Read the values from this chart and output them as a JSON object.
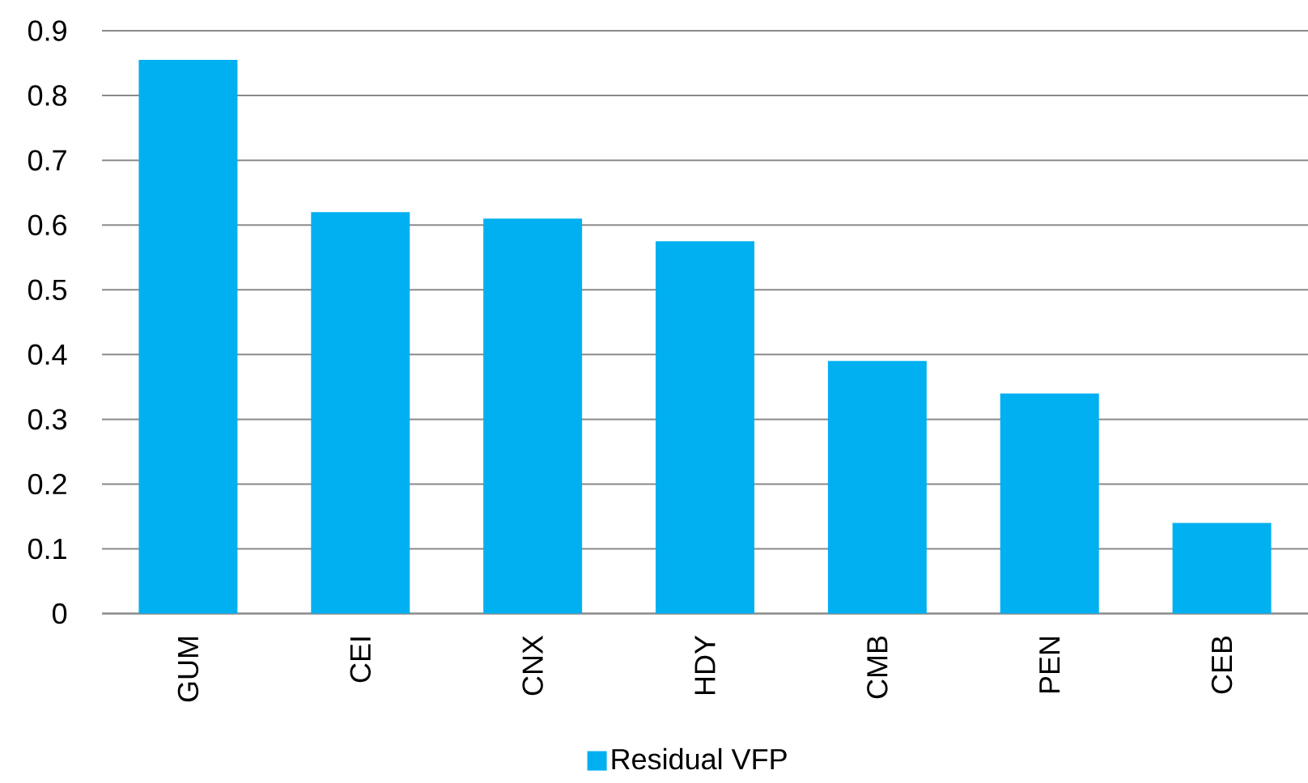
{
  "chart_data": {
    "type": "bar",
    "categories": [
      "GUM",
      "CEI",
      "CNX",
      "HDY",
      "CMB",
      "PEN",
      "CEB"
    ],
    "series": [
      {
        "name": "Residual VFP",
        "color": "#00b0f0",
        "values": [
          0.855,
          0.62,
          0.61,
          0.575,
          0.39,
          0.34,
          0.14
        ]
      }
    ],
    "ylim": [
      0,
      0.9
    ],
    "yticks": [
      0,
      0.1,
      0.2,
      0.3,
      0.4,
      0.5,
      0.6,
      0.7,
      0.8,
      0.9
    ],
    "grid": "y",
    "legend": "bottom"
  }
}
